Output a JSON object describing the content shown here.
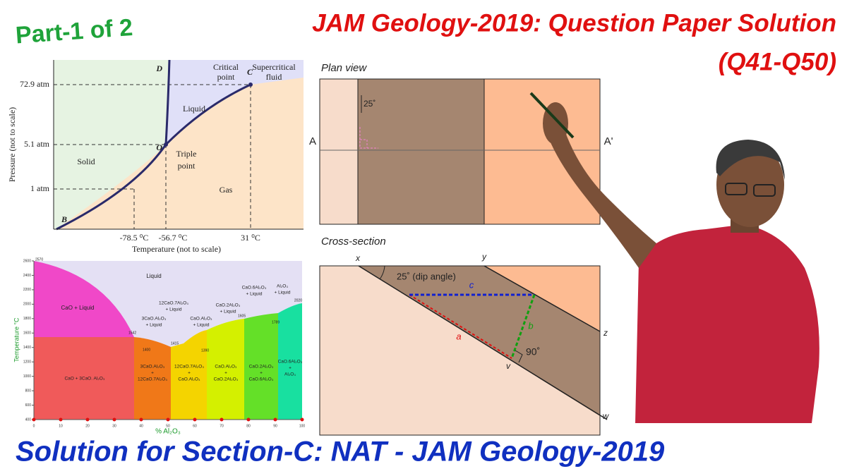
{
  "header": {
    "part": "Part-1 of 2",
    "title": "JAM Geology-2019: Question Paper Solution",
    "questions": "(Q41-Q50)"
  },
  "phase_diagram": {
    "y_axis_label": "Pressure (not to scale)",
    "x_axis_label": "Temperature (not to scale)",
    "pressures": [
      "72.9 atm",
      "5.1 atm",
      "1 atm"
    ],
    "temperatures": [
      "-78.5 ⁰C",
      "-56.7 ⁰C",
      "31 ⁰C"
    ],
    "regions": [
      "Solid",
      "Liquid",
      "Gas"
    ],
    "triple_point": [
      "Triple",
      "point"
    ],
    "critical_point": [
      "Critical",
      "point"
    ],
    "supercritical": [
      "Supercritical",
      "fluid"
    ],
    "points": [
      "B",
      "O",
      "C",
      "D"
    ]
  },
  "cao_diagram": {
    "y_axis_label": "Temperature °C",
    "x_axis_label": "% Al₂O₃",
    "yticks": [
      400,
      600,
      800,
      1000,
      1200,
      1400,
      1600,
      1800,
      2000,
      2200,
      2400,
      2600
    ],
    "xticks": [
      0,
      10,
      20,
      30,
      40,
      50,
      60,
      70,
      80,
      90,
      100
    ],
    "temps": [
      "2570",
      "1542",
      "1400",
      "1415",
      "1390",
      "1605",
      "1789",
      "2020"
    ],
    "liquid": "Liquid",
    "cao_liquid": "CaO + Liquid",
    "liquidus_labels": [
      [
        "3CaO.Al₂O₃",
        "+ Liquid"
      ],
      [
        "12CaO.7Al₂O₃",
        "+ Liquid"
      ],
      [
        "CaO.Al₂O₃",
        "+ Liquid"
      ],
      [
        "CaO.2Al₂O₃",
        "+ Liquid"
      ],
      [
        "CaO.6Al₂O₃",
        "+ Liquid"
      ],
      [
        "Al₂O₃",
        "+ Liquid"
      ]
    ],
    "solid_labels": [
      [
        "CaO + 3CaO. Al₂O₃"
      ],
      [
        "3CaO.Al₂O₃",
        "+",
        "12CaO.7Al₂O₃"
      ],
      [
        "12CaO.7Al₂O₃",
        "+",
        "CaO.Al₂O₃"
      ],
      [
        "CaO.Al₂O₃",
        "+",
        "CaO.2Al₂O₃"
      ],
      [
        "CaO.2Al₂O₃",
        "+",
        "CaO.6Al₂O₃"
      ],
      [
        "CaO.6Al₂O₃",
        "+",
        "Al₂O₃"
      ]
    ]
  },
  "plan_view": {
    "title": "Plan view",
    "angle": "25˚",
    "left": "A",
    "right": "A'"
  },
  "cross_section": {
    "title": "Cross-section",
    "dip": "25˚ (dip angle)",
    "right_angle": "90˚",
    "points": [
      "x",
      "y",
      "z",
      "w",
      "v"
    ],
    "segments": [
      "a",
      "b",
      "c"
    ]
  },
  "footer": "Solution for Section-C: NAT - JAM Geology-2019"
}
